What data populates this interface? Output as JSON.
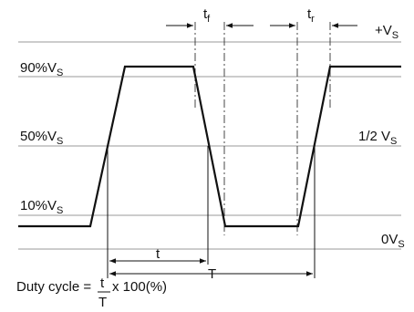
{
  "levels": {
    "plus_vs": {
      "main": "+V",
      "sub": "S"
    },
    "ninety": {
      "main": "90%V",
      "sub": "S"
    },
    "fifty": {
      "main": "50%V",
      "sub": "S"
    },
    "half": {
      "main": "1/2 V",
      "sub": "S"
    },
    "ten": {
      "main": "10%V",
      "sub": "S"
    },
    "zero": {
      "main": "0V",
      "sub": "S"
    }
  },
  "timing": {
    "tf": {
      "main": "t",
      "sub": "f"
    },
    "tr": {
      "main": "t",
      "sub": "r"
    },
    "t": "t",
    "T": "T"
  },
  "formula": {
    "prefix": "Duty cycle = ",
    "numerator": "t",
    "denominator": "T",
    "suffix": " x 100(%)"
  }
}
